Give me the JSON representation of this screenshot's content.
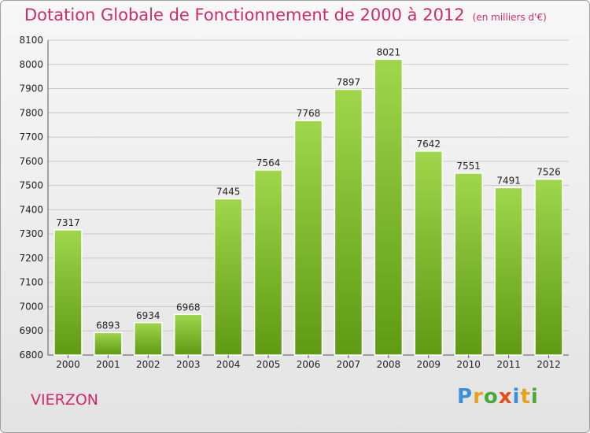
{
  "header": {
    "title": "Dotation Globale de Fonctionnement de 2000 à 2012",
    "subtitle": "(en milliers d'€)"
  },
  "footer": {
    "city": "VIERZON",
    "logo": "Proxiti",
    "logo_colors": [
      "#3a8fd8",
      "#e8a21a",
      "#4aa83a",
      "#e84c1a",
      "#3a8fd8",
      "#e8a21a",
      "#4aa83a"
    ]
  },
  "chart_data": {
    "type": "bar",
    "title": "Dotation Globale de Fonctionnement de 2000 à 2012",
    "subtitle": "(en milliers d'€)",
    "categories": [
      "2000",
      "2001",
      "2002",
      "2003",
      "2004",
      "2005",
      "2006",
      "2007",
      "2008",
      "2009",
      "2010",
      "2011",
      "2012"
    ],
    "values": [
      7317,
      6893,
      6934,
      6968,
      7445,
      7564,
      7768,
      7897,
      8021,
      7642,
      7551,
      7491,
      7526
    ],
    "ylim": [
      6800,
      8100
    ],
    "yticks": [
      6800,
      6900,
      7000,
      7100,
      7200,
      7300,
      7400,
      7500,
      7600,
      7700,
      7800,
      7900,
      8000,
      8100
    ],
    "grid": true,
    "bar_color": "#8cc63f",
    "bar_color_dark": "#5e9a12"
  }
}
